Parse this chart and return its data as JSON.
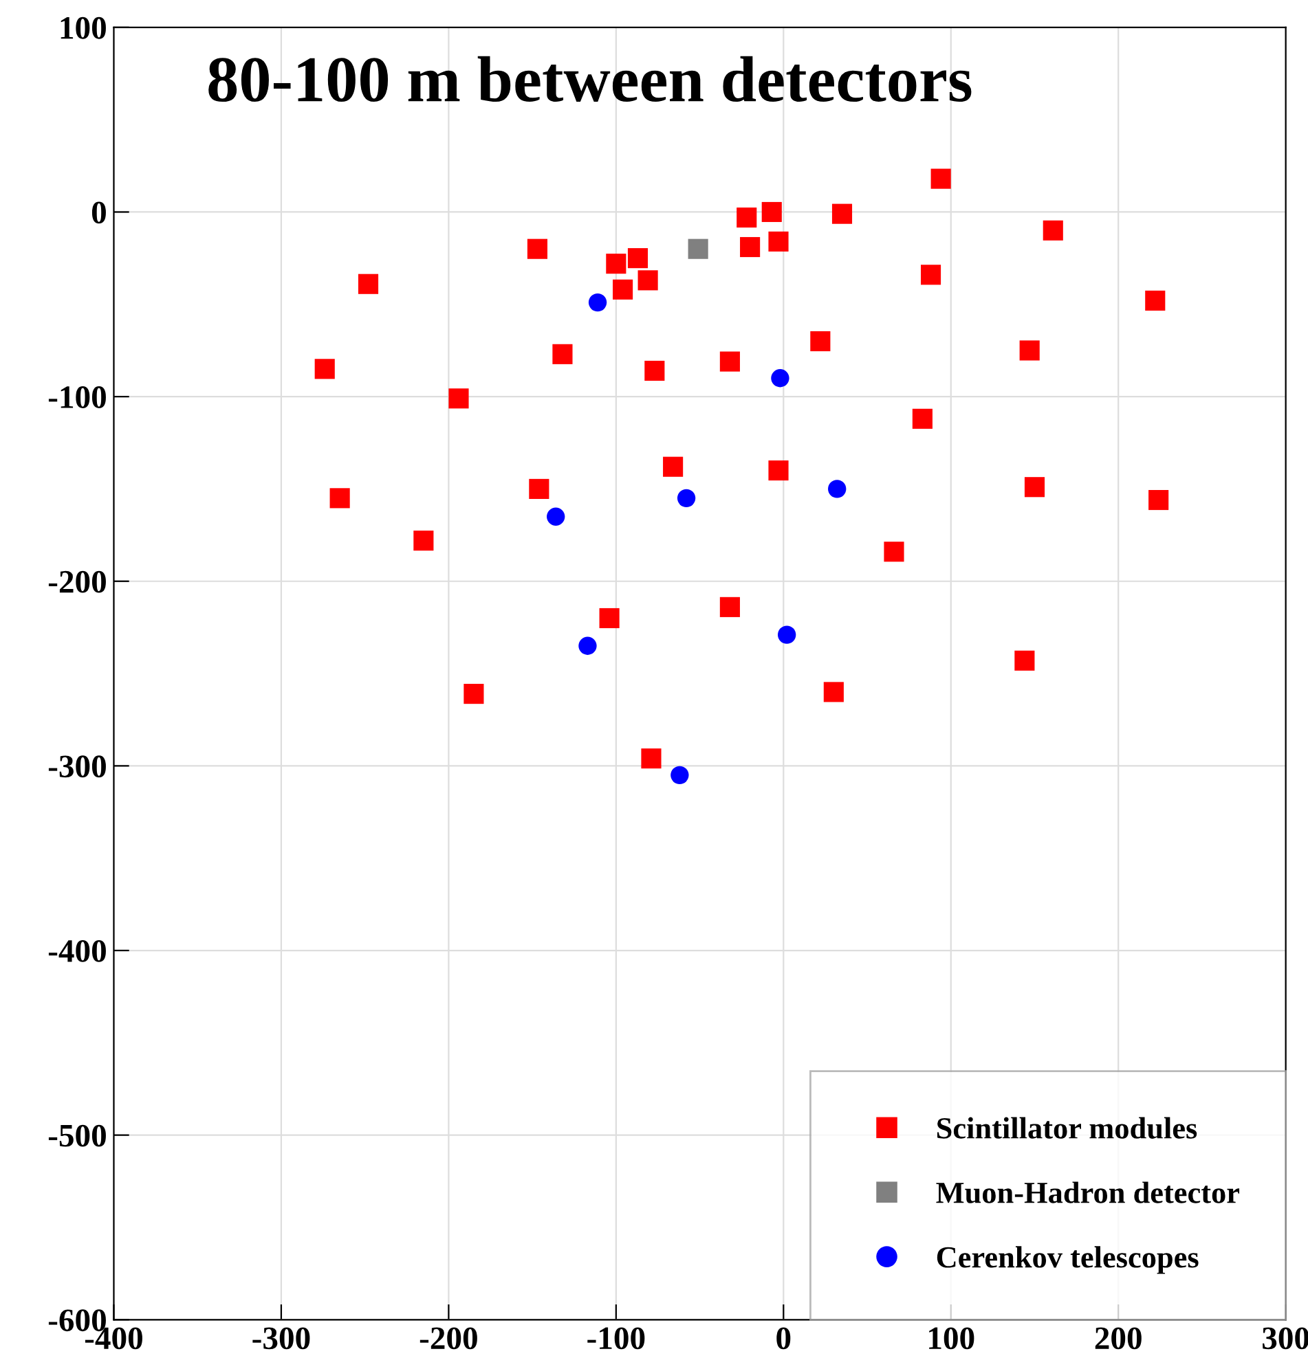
{
  "chart_data": {
    "type": "scatter",
    "annotations": [
      "80-100 m between detectors"
    ],
    "series": [
      {
        "name": "Scintillator modules",
        "color": "#ff0000",
        "marker": "square",
        "x": [
          -274,
          -265,
          -248,
          -194,
          -215,
          -185,
          -147,
          -146,
          -132,
          -104,
          -100,
          -96,
          -87,
          -81,
          -77,
          -79,
          -66,
          -32,
          -32,
          -22,
          -20,
          -7,
          -3,
          -3,
          22,
          35,
          30,
          66,
          83,
          88,
          94,
          147,
          150,
          144,
          161,
          222,
          224
        ],
        "values": [
          -85,
          -155,
          -39,
          -101,
          -178,
          -261,
          -20,
          -150,
          -77,
          -220,
          -28,
          -42,
          -25,
          -37,
          -86,
          -296,
          -138,
          -81,
          -214,
          -3,
          -19,
          0,
          -16,
          -140,
          -70,
          -1,
          -260,
          -184,
          -112,
          -34,
          18,
          -75,
          -149,
          -243,
          -10,
          -48,
          -156
        ]
      },
      {
        "name": "Muon-Hadron detector",
        "color": "#808080",
        "marker": "square",
        "x": [
          -51
        ],
        "values": [
          -20
        ]
      },
      {
        "name": "Cerenkov telescopes",
        "color": "#0000ff",
        "marker": "circle",
        "x": [
          -111,
          -2,
          -136,
          -58,
          32,
          -117,
          2,
          -62
        ],
        "values": [
          -49,
          -90,
          -165,
          -155,
          -150,
          -235,
          -229,
          -305
        ]
      }
    ],
    "xlim": [
      -400,
      300
    ],
    "xticks": [
      -400,
      -300,
      -200,
      -100,
      0,
      100,
      200,
      300
    ],
    "ylim": [
      -600,
      100
    ],
    "yticks": [
      -600,
      -500,
      -400,
      -300,
      -200,
      -100,
      0,
      100
    ],
    "grid": true,
    "legend": "bottom right"
  }
}
